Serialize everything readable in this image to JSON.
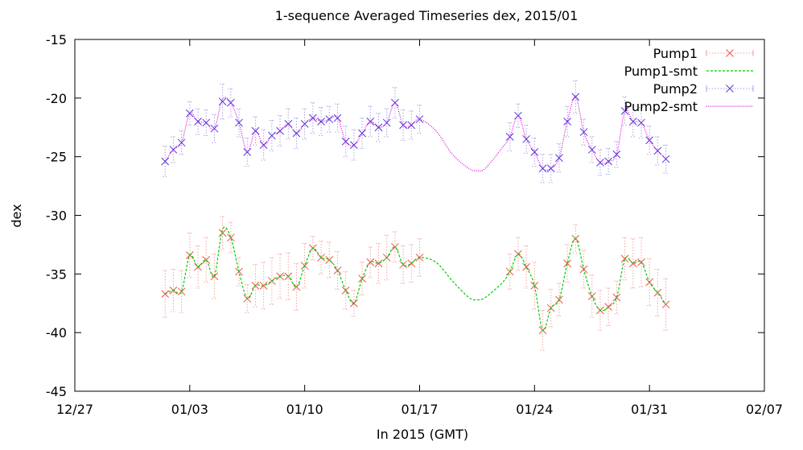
{
  "chart_data": {
    "type": "line",
    "title": "1-sequence Averaged Timeseries dex, 2015/01",
    "xlabel": "In 2015 (GMT)",
    "ylabel": "dex",
    "xlim": [
      "2014-12-27",
      "2015-02-07"
    ],
    "ylim": [
      -45,
      -15
    ],
    "x_ticks": [
      {
        "date": "2014-12-27",
        "label": "12/27"
      },
      {
        "date": "2015-01-03",
        "label": "01/03"
      },
      {
        "date": "2015-01-10",
        "label": "01/10"
      },
      {
        "date": "2015-01-17",
        "label": "01/17"
      },
      {
        "date": "2015-01-24",
        "label": "01/24"
      },
      {
        "date": "2015-01-31",
        "label": "01/31"
      },
      {
        "date": "2015-02-07",
        "label": "02/07"
      }
    ],
    "y_ticks": [
      -45,
      -40,
      -35,
      -30,
      -25,
      -20,
      -15
    ],
    "legend_position": "top-right",
    "series": [
      {
        "name": "Pump1",
        "style": "points-errorbars",
        "color": "#e8554a",
        "errcolor": "#f4a39d",
        "points": [
          [
            "2015-01-01T12:00",
            -36.7,
            2.0
          ],
          [
            "2015-01-02T00:00",
            -36.4,
            1.8
          ],
          [
            "2015-01-02T12:00",
            -36.5,
            1.8
          ],
          [
            "2015-01-03T00:00",
            -33.4,
            1.9
          ],
          [
            "2015-01-03T12:00",
            -34.4,
            1.8
          ],
          [
            "2015-01-04T00:00",
            -33.8,
            1.9
          ],
          [
            "2015-01-04T12:00",
            -35.2,
            1.9
          ],
          [
            "2015-01-05T00:00",
            -31.5,
            1.4
          ],
          [
            "2015-01-05T12:00",
            -31.9,
            1.3
          ],
          [
            "2015-01-06T00:00",
            -34.8,
            1.2
          ],
          [
            "2015-01-06T12:00",
            -37.1,
            1.2
          ],
          [
            "2015-01-07T00:00",
            -36.0,
            1.8
          ],
          [
            "2015-01-07T12:00",
            -36.0,
            2.0
          ],
          [
            "2015-01-08T00:00",
            -35.6,
            2.0
          ],
          [
            "2015-01-08T12:00",
            -35.2,
            1.9
          ],
          [
            "2015-01-09T00:00",
            -35.2,
            2.0
          ],
          [
            "2015-01-09T12:00",
            -36.1,
            2.0
          ],
          [
            "2015-01-10T00:00",
            -34.3,
            1.9
          ],
          [
            "2015-01-10T12:00",
            -32.8,
            1.0
          ],
          [
            "2015-01-11T00:00",
            -33.6,
            1.4
          ],
          [
            "2015-01-11T12:00",
            -33.8,
            1.5
          ],
          [
            "2015-01-12T00:00",
            -34.7,
            1.6
          ],
          [
            "2015-01-12T12:00",
            -36.4,
            1.6
          ],
          [
            "2015-01-13T00:00",
            -37.5,
            1.1
          ],
          [
            "2015-01-13T12:00",
            -35.4,
            1.4
          ],
          [
            "2015-01-14T00:00",
            -34.0,
            1.3
          ],
          [
            "2015-01-14T12:00",
            -34.1,
            1.7
          ],
          [
            "2015-01-15T00:00",
            -33.6,
            1.9
          ],
          [
            "2015-01-15T12:00",
            -32.7,
            1.3
          ],
          [
            "2015-01-16T00:00",
            -34.2,
            1.6
          ],
          [
            "2015-01-16T12:00",
            -34.1,
            1.6
          ],
          [
            "2015-01-17T00:00",
            -33.6,
            1.6
          ],
          [
            "2015-01-22T12:00",
            -34.8,
            1.5
          ],
          [
            "2015-01-23T00:00",
            -33.3,
            1.4
          ],
          [
            "2015-01-23T12:00",
            -34.4,
            1.8
          ],
          [
            "2015-01-24T00:00",
            -36.0,
            2.0
          ],
          [
            "2015-01-24T12:00",
            -39.8,
            1.7
          ],
          [
            "2015-01-25T00:00",
            -37.9,
            1.6
          ],
          [
            "2015-01-25T12:00",
            -37.2,
            1.4
          ],
          [
            "2015-01-26T00:00",
            -34.1,
            1.6
          ],
          [
            "2015-01-26T12:00",
            -32.0,
            1.2
          ],
          [
            "2015-01-27T00:00",
            -34.6,
            1.6
          ],
          [
            "2015-01-27T12:00",
            -36.9,
            1.8
          ],
          [
            "2015-01-28T00:00",
            -38.1,
            1.7
          ],
          [
            "2015-01-28T12:00",
            -37.8,
            1.6
          ],
          [
            "2015-01-29T00:00",
            -37.0,
            1.4
          ],
          [
            "2015-01-29T12:00",
            -33.7,
            1.8
          ],
          [
            "2015-01-30T00:00",
            -34.1,
            2.1
          ],
          [
            "2015-01-30T12:00",
            -34.0,
            2.1
          ],
          [
            "2015-01-31T00:00",
            -35.7,
            2.0
          ],
          [
            "2015-01-31T12:00",
            -36.6,
            2.0
          ],
          [
            "2015-02-01T00:00",
            -37.6,
            2.2
          ]
        ]
      },
      {
        "name": "Pump1-smt",
        "style": "dashed-line",
        "color": "#00cc00",
        "points": [
          [
            "2015-01-01T12:00",
            -36.7
          ],
          [
            "2015-01-02T00:00",
            -36.4
          ],
          [
            "2015-01-02T12:00",
            -36.5
          ],
          [
            "2015-01-03T00:00",
            -33.4
          ],
          [
            "2015-01-03T12:00",
            -34.4
          ],
          [
            "2015-01-04T00:00",
            -33.8
          ],
          [
            "2015-01-04T12:00",
            -35.2
          ],
          [
            "2015-01-05T00:00",
            -31.2
          ],
          [
            "2015-01-05T12:00",
            -31.9
          ],
          [
            "2015-01-06T00:00",
            -34.8
          ],
          [
            "2015-01-06T12:00",
            -37.1
          ],
          [
            "2015-01-07T00:00",
            -36.0
          ],
          [
            "2015-01-07T12:00",
            -36.0
          ],
          [
            "2015-01-08T00:00",
            -35.6
          ],
          [
            "2015-01-08T12:00",
            -35.2
          ],
          [
            "2015-01-09T00:00",
            -35.2
          ],
          [
            "2015-01-09T12:00",
            -36.1
          ],
          [
            "2015-01-10T00:00",
            -34.3
          ],
          [
            "2015-01-10T12:00",
            -32.8
          ],
          [
            "2015-01-11T00:00",
            -33.6
          ],
          [
            "2015-01-11T12:00",
            -33.8
          ],
          [
            "2015-01-12T00:00",
            -34.7
          ],
          [
            "2015-01-12T12:00",
            -36.4
          ],
          [
            "2015-01-13T00:00",
            -37.5
          ],
          [
            "2015-01-13T12:00",
            -35.4
          ],
          [
            "2015-01-14T00:00",
            -34.0
          ],
          [
            "2015-01-14T12:00",
            -34.1
          ],
          [
            "2015-01-15T00:00",
            -33.6
          ],
          [
            "2015-01-15T12:00",
            -32.7
          ],
          [
            "2015-01-16T00:00",
            -34.2
          ],
          [
            "2015-01-16T12:00",
            -34.1
          ],
          [
            "2015-01-17T00:00",
            -33.6
          ],
          [
            "2015-01-18T00:00",
            -34.0
          ],
          [
            "2015-01-19T00:00",
            -35.6
          ],
          [
            "2015-01-20T00:00",
            -37.0
          ],
          [
            "2015-01-20T12:00",
            -37.2
          ],
          [
            "2015-01-21T00:00",
            -37.0
          ],
          [
            "2015-01-22T00:00",
            -35.8
          ],
          [
            "2015-01-22T12:00",
            -34.8
          ],
          [
            "2015-01-23T00:00",
            -33.3
          ],
          [
            "2015-01-23T12:00",
            -34.4
          ],
          [
            "2015-01-24T00:00",
            -36.0
          ],
          [
            "2015-01-24T12:00",
            -39.8
          ],
          [
            "2015-01-25T00:00",
            -37.9
          ],
          [
            "2015-01-25T12:00",
            -37.2
          ],
          [
            "2015-01-26T00:00",
            -34.1
          ],
          [
            "2015-01-26T12:00",
            -32.0
          ],
          [
            "2015-01-27T00:00",
            -34.6
          ],
          [
            "2015-01-27T12:00",
            -36.9
          ],
          [
            "2015-01-28T00:00",
            -38.1
          ],
          [
            "2015-01-28T12:00",
            -37.8
          ],
          [
            "2015-01-29T00:00",
            -37.0
          ],
          [
            "2015-01-29T12:00",
            -33.7
          ],
          [
            "2015-01-30T00:00",
            -34.1
          ],
          [
            "2015-01-30T12:00",
            -34.0
          ],
          [
            "2015-01-31T00:00",
            -35.7
          ],
          [
            "2015-01-31T12:00",
            -36.6
          ],
          [
            "2015-02-01T00:00",
            -37.6
          ]
        ]
      },
      {
        "name": "Pump2",
        "style": "points-errorbars",
        "color": "#4d3bd9",
        "errcolor": "#a8a1e6",
        "points": [
          [
            "2015-01-01T12:00",
            -25.4,
            1.3
          ],
          [
            "2015-01-02T00:00",
            -24.4,
            1.1
          ],
          [
            "2015-01-02T12:00",
            -23.8,
            1.0
          ],
          [
            "2015-01-03T00:00",
            -21.3,
            1.0
          ],
          [
            "2015-01-03T12:00",
            -22.0,
            1.1
          ],
          [
            "2015-01-04T00:00",
            -22.1,
            1.1
          ],
          [
            "2015-01-04T12:00",
            -22.6,
            1.2
          ],
          [
            "2015-01-05T00:00",
            -20.3,
            1.5
          ],
          [
            "2015-01-05T12:00",
            -20.4,
            1.2
          ],
          [
            "2015-01-06T00:00",
            -22.1,
            1.2
          ],
          [
            "2015-01-06T12:00",
            -24.6,
            1.2
          ],
          [
            "2015-01-07T00:00",
            -22.8,
            1.2
          ],
          [
            "2015-01-07T12:00",
            -24.0,
            1.3
          ],
          [
            "2015-01-08T00:00",
            -23.2,
            1.3
          ],
          [
            "2015-01-08T12:00",
            -22.8,
            1.3
          ],
          [
            "2015-01-09T00:00",
            -22.2,
            1.3
          ],
          [
            "2015-01-09T12:00",
            -23.0,
            1.3
          ],
          [
            "2015-01-10T00:00",
            -22.2,
            1.3
          ],
          [
            "2015-01-10T12:00",
            -21.7,
            1.3
          ],
          [
            "2015-01-11T00:00",
            -22.0,
            1.2
          ],
          [
            "2015-01-11T12:00",
            -21.8,
            1.1
          ],
          [
            "2015-01-12T00:00",
            -21.7,
            1.2
          ],
          [
            "2015-01-12T12:00",
            -23.7,
            1.3
          ],
          [
            "2015-01-13T00:00",
            -24.0,
            1.3
          ],
          [
            "2015-01-13T12:00",
            -23.0,
            1.3
          ],
          [
            "2015-01-14T00:00",
            -22.0,
            1.3
          ],
          [
            "2015-01-14T12:00",
            -22.5,
            1.2
          ],
          [
            "2015-01-15T00:00",
            -22.1,
            1.2
          ],
          [
            "2015-01-15T12:00",
            -20.4,
            1.3
          ],
          [
            "2015-01-16T00:00",
            -22.3,
            1.3
          ],
          [
            "2015-01-16T12:00",
            -22.3,
            1.2
          ],
          [
            "2015-01-17T00:00",
            -21.8,
            1.2
          ],
          [
            "2015-01-22T12:00",
            -23.3,
            1.2
          ],
          [
            "2015-01-23T00:00",
            -21.5,
            1.0
          ],
          [
            "2015-01-23T12:00",
            -23.5,
            1.2
          ],
          [
            "2015-01-24T00:00",
            -24.6,
            1.2
          ],
          [
            "2015-01-24T12:00",
            -26.0,
            1.2
          ],
          [
            "2015-01-25T00:00",
            -26.0,
            1.2
          ],
          [
            "2015-01-25T12:00",
            -25.1,
            1.2
          ],
          [
            "2015-01-26T00:00",
            -22.0,
            1.3
          ],
          [
            "2015-01-26T12:00",
            -19.9,
            1.4
          ],
          [
            "2015-01-27T00:00",
            -22.9,
            1.1
          ],
          [
            "2015-01-27T12:00",
            -24.4,
            1.1
          ],
          [
            "2015-01-28T00:00",
            -25.5,
            1.1
          ],
          [
            "2015-01-28T12:00",
            -25.4,
            1.1
          ],
          [
            "2015-01-29T00:00",
            -24.8,
            1.1
          ],
          [
            "2015-01-29T12:00",
            -21.1,
            1.2
          ],
          [
            "2015-01-30T00:00",
            -22.0,
            1.3
          ],
          [
            "2015-01-30T12:00",
            -22.1,
            1.3
          ],
          [
            "2015-01-31T00:00",
            -23.6,
            1.2
          ],
          [
            "2015-01-31T12:00",
            -24.5,
            1.2
          ],
          [
            "2015-02-01T00:00",
            -25.2,
            1.2
          ]
        ]
      },
      {
        "name": "Pump2-smt",
        "style": "dotted-line",
        "color": "#e000e0",
        "points": [
          [
            "2015-01-01T12:00",
            -25.4
          ],
          [
            "2015-01-02T00:00",
            -24.4
          ],
          [
            "2015-01-02T12:00",
            -23.8
          ],
          [
            "2015-01-03T00:00",
            -21.3
          ],
          [
            "2015-01-03T12:00",
            -22.0
          ],
          [
            "2015-01-04T00:00",
            -22.1
          ],
          [
            "2015-01-04T12:00",
            -22.6
          ],
          [
            "2015-01-05T00:00",
            -20.1
          ],
          [
            "2015-01-05T12:00",
            -20.4
          ],
          [
            "2015-01-06T00:00",
            -22.1
          ],
          [
            "2015-01-06T12:00",
            -24.6
          ],
          [
            "2015-01-07T00:00",
            -22.8
          ],
          [
            "2015-01-07T12:00",
            -24.0
          ],
          [
            "2015-01-08T00:00",
            -23.2
          ],
          [
            "2015-01-08T12:00",
            -22.8
          ],
          [
            "2015-01-09T00:00",
            -22.2
          ],
          [
            "2015-01-09T12:00",
            -23.0
          ],
          [
            "2015-01-10T00:00",
            -22.2
          ],
          [
            "2015-01-10T12:00",
            -21.7
          ],
          [
            "2015-01-11T00:00",
            -22.0
          ],
          [
            "2015-01-11T12:00",
            -21.8
          ],
          [
            "2015-01-12T00:00",
            -21.7
          ],
          [
            "2015-01-12T12:00",
            -23.7
          ],
          [
            "2015-01-13T00:00",
            -24.0
          ],
          [
            "2015-01-13T12:00",
            -23.0
          ],
          [
            "2015-01-14T00:00",
            -22.0
          ],
          [
            "2015-01-14T12:00",
            -22.5
          ],
          [
            "2015-01-15T00:00",
            -22.1
          ],
          [
            "2015-01-15T12:00",
            -20.4
          ],
          [
            "2015-01-16T00:00",
            -22.3
          ],
          [
            "2015-01-16T12:00",
            -22.3
          ],
          [
            "2015-01-17T00:00",
            -21.8
          ],
          [
            "2015-01-18T00:00",
            -22.8
          ],
          [
            "2015-01-19T00:00",
            -24.8
          ],
          [
            "2015-01-20T00:00",
            -26.0
          ],
          [
            "2015-01-20T12:00",
            -26.2
          ],
          [
            "2015-01-21T00:00",
            -26.0
          ],
          [
            "2015-01-22T00:00",
            -24.3
          ],
          [
            "2015-01-22T12:00",
            -23.3
          ],
          [
            "2015-01-23T00:00",
            -21.5
          ],
          [
            "2015-01-23T12:00",
            -23.5
          ],
          [
            "2015-01-24T00:00",
            -24.6
          ],
          [
            "2015-01-24T12:00",
            -26.0
          ],
          [
            "2015-01-25T00:00",
            -26.0
          ],
          [
            "2015-01-25T12:00",
            -25.1
          ],
          [
            "2015-01-26T00:00",
            -22.0
          ],
          [
            "2015-01-26T12:00",
            -19.9
          ],
          [
            "2015-01-27T00:00",
            -22.9
          ],
          [
            "2015-01-27T12:00",
            -24.4
          ],
          [
            "2015-01-28T00:00",
            -25.5
          ],
          [
            "2015-01-28T12:00",
            -25.4
          ],
          [
            "2015-01-29T00:00",
            -24.8
          ],
          [
            "2015-01-29T12:00",
            -21.1
          ],
          [
            "2015-01-30T00:00",
            -22.0
          ],
          [
            "2015-01-30T12:00",
            -22.1
          ],
          [
            "2015-01-31T00:00",
            -23.6
          ],
          [
            "2015-01-31T12:00",
            -24.5
          ],
          [
            "2015-02-01T00:00",
            -25.2
          ]
        ]
      }
    ]
  }
}
